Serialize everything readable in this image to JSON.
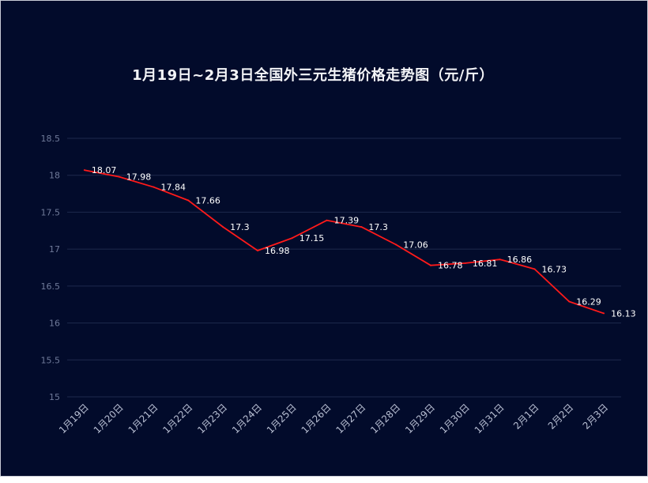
{
  "chart_data": {
    "type": "line",
    "title": "1月19日~2月3日全国外三元生猪价格走势图（元/斤）",
    "xlabel": "",
    "ylabel": "",
    "categories": [
      "1月19日",
      "1月20日",
      "1月21日",
      "1月22日",
      "1月23日",
      "1月24日",
      "1月25日",
      "1月26日",
      "1月27日",
      "1月28日",
      "1月29日",
      "1月30日",
      "1月31日",
      "2月1日",
      "2月2日",
      "2月3日"
    ],
    "series": [
      {
        "values": [
          18.07,
          17.98,
          17.84,
          17.66,
          17.3,
          16.98,
          17.15,
          17.39,
          17.3,
          17.06,
          16.78,
          16.81,
          16.86,
          16.73,
          16.29,
          16.13
        ]
      }
    ],
    "yticks": [
      "15",
      "15.5",
      "16",
      "16.5",
      "17",
      "17.5",
      "18",
      "18.5"
    ],
    "ylim": [
      15,
      18.5
    ],
    "grid": true,
    "legend": "none",
    "colors": {
      "background": "#020b2b",
      "line": "#ff1a1a",
      "grid": "#1e2a4d",
      "text": "#ffffff"
    }
  }
}
